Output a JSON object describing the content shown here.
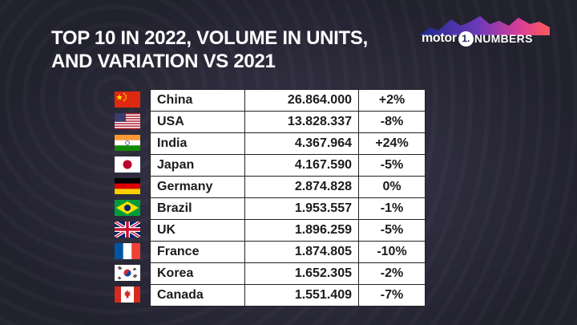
{
  "title": {
    "line1": "TOP 10 IN 2022, VOLUME IN UNITS,",
    "line2": "AND VARIATION VS 2021"
  },
  "logo": {
    "brand": "motor",
    "one": "1.",
    "suffix": "NUMBERS",
    "colors": [
      "#1d2b8f",
      "#6b3ab8",
      "#d43c9b",
      "#ff5a5a"
    ]
  },
  "chart_data": {
    "type": "table",
    "title": "TOP 10 IN 2022, VOLUME IN UNITS, AND VARIATION VS 2021",
    "columns": [
      "",
      "",
      ""
    ],
    "rows": [
      {
        "flag": "china-flag-icon",
        "country": "China",
        "units": "26.864.000",
        "variation": "+2%"
      },
      {
        "flag": "usa-flag-icon",
        "country": "USA",
        "units": "13.828.337",
        "variation": "-8%"
      },
      {
        "flag": "india-flag-icon",
        "country": "India",
        "units": "4.367.964",
        "variation": "+24%"
      },
      {
        "flag": "japan-flag-icon",
        "country": "Japan",
        "units": "4.167.590",
        "variation": "-5%"
      },
      {
        "flag": "germany-flag-icon",
        "country": "Germany",
        "units": "2.874.828",
        "variation": "0%"
      },
      {
        "flag": "brazil-flag-icon",
        "country": "Brazil",
        "units": "1.953.557",
        "variation": "-1%"
      },
      {
        "flag": "uk-flag-icon",
        "country": "UK",
        "units": "1.896.259",
        "variation": "-5%"
      },
      {
        "flag": "france-flag-icon",
        "country": "France",
        "units": "1.874.805",
        "variation": "-10%"
      },
      {
        "flag": "korea-flag-icon",
        "country": "Korea",
        "units": "1.652.305",
        "variation": "-2%"
      },
      {
        "flag": "canada-flag-icon",
        "country": "Canada",
        "units": "1.551.409",
        "variation": "-7%"
      }
    ]
  }
}
